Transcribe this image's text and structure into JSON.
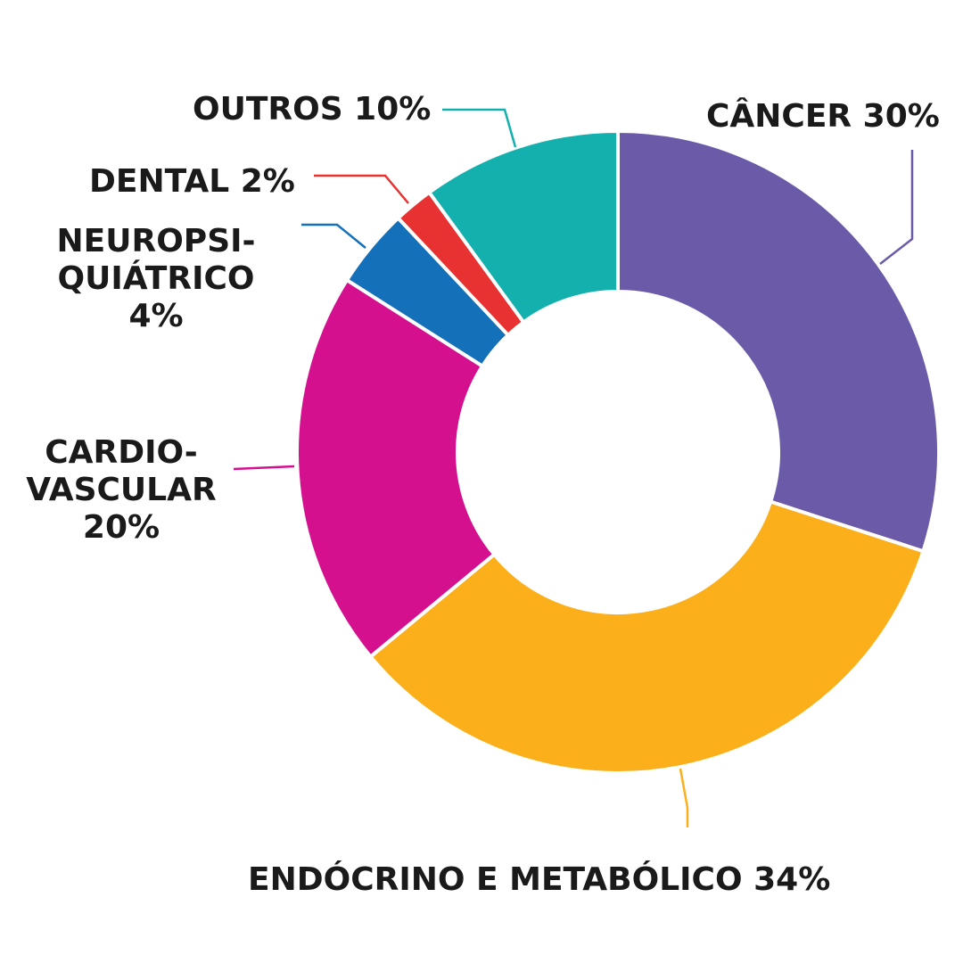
{
  "chart_data": {
    "type": "pie",
    "donut": true,
    "slices": [
      {
        "key": "cancer",
        "label_lines": [
          "CÂNCER 30%"
        ],
        "value": 30,
        "color": "#6B5AA8"
      },
      {
        "key": "endo",
        "label_lines": [
          "ENDÓCRINO E METABÓLICO 34%"
        ],
        "value": 34,
        "color": "#FBAF1A"
      },
      {
        "key": "cardio",
        "label_lines": [
          "CARDIO-",
          "VASCULAR",
          "20%"
        ],
        "value": 20,
        "color": "#D4108E"
      },
      {
        "key": "neuro",
        "label_lines": [
          "NEUROPSI-",
          "QUIÁTRICO",
          "4%"
        ],
        "value": 4,
        "color": "#1470B8"
      },
      {
        "key": "dental",
        "label_lines": [
          "DENTAL 2%"
        ],
        "value": 2,
        "color": "#E83232"
      },
      {
        "key": "outros",
        "label_lines": [
          "OUTROS 10%"
        ],
        "value": 10,
        "color": "#14B0AE"
      }
    ]
  }
}
